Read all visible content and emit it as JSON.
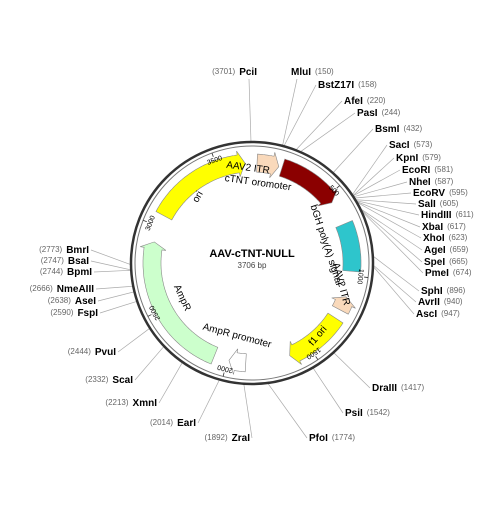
{
  "title": "AAV-cTNT-NULL",
  "size": "3706 bp",
  "ticks": [
    500,
    1000,
    1500,
    2000,
    2500,
    3000,
    3500
  ],
  "features": [
    "AAV2 ITR",
    "cTNT oromoter",
    "bGH poly(A) signal",
    "AAV2 ITR",
    "f1 ori",
    "AmpR promoter",
    "AmpR",
    "ori"
  ],
  "sites": [
    {
      "name": "PciI",
      "position": "(3701)"
    },
    {
      "name": "MluI",
      "position": "(150)"
    },
    {
      "name": "BstZ17I",
      "position": "(158)"
    },
    {
      "name": "AfeI",
      "position": "(220)"
    },
    {
      "name": "PasI",
      "position": "(244)"
    },
    {
      "name": "BsmI",
      "position": "(432)"
    },
    {
      "name": "SacI",
      "position": "(573)"
    },
    {
      "name": "KpnI",
      "position": "(579)"
    },
    {
      "name": "EcoRI",
      "position": "(581)"
    },
    {
      "name": "NheI",
      "position": "(587)"
    },
    {
      "name": "EcoRV",
      "position": "(595)"
    },
    {
      "name": "SalI",
      "position": "(605)"
    },
    {
      "name": "HindIII",
      "position": "(611)"
    },
    {
      "name": "XbaI",
      "position": "(617)"
    },
    {
      "name": "XhoI",
      "position": "(623)"
    },
    {
      "name": "AgeI",
      "position": "(659)"
    },
    {
      "name": "SpeI",
      "position": "(665)"
    },
    {
      "name": "PmeI",
      "position": "(674)"
    },
    {
      "name": "SphI",
      "position": "(896)"
    },
    {
      "name": "AvrII",
      "position": "(940)"
    },
    {
      "name": "AscI",
      "position": "(947)"
    },
    {
      "name": "DraIII",
      "position": "(1417)"
    },
    {
      "name": "PsiI",
      "position": "(1542)"
    },
    {
      "name": "PfoI",
      "position": "(1774)"
    },
    {
      "name": "ZraI",
      "position": "(1892)"
    },
    {
      "name": "EarI",
      "position": "(2014)"
    },
    {
      "name": "XmnI",
      "position": "(2213)"
    },
    {
      "name": "ScaI",
      "position": "(2332)"
    },
    {
      "name": "PvuI",
      "position": "(2444)"
    },
    {
      "name": "FspI",
      "position": "(2590)"
    },
    {
      "name": "AseI",
      "position": "(2638)"
    },
    {
      "name": "NmeAIII",
      "position": "(2666)"
    },
    {
      "name": "BpmI",
      "position": "(2744)"
    },
    {
      "name": "BsaI",
      "position": "(2747)"
    },
    {
      "name": "BmrI",
      "position": "(2773)"
    }
  ]
}
